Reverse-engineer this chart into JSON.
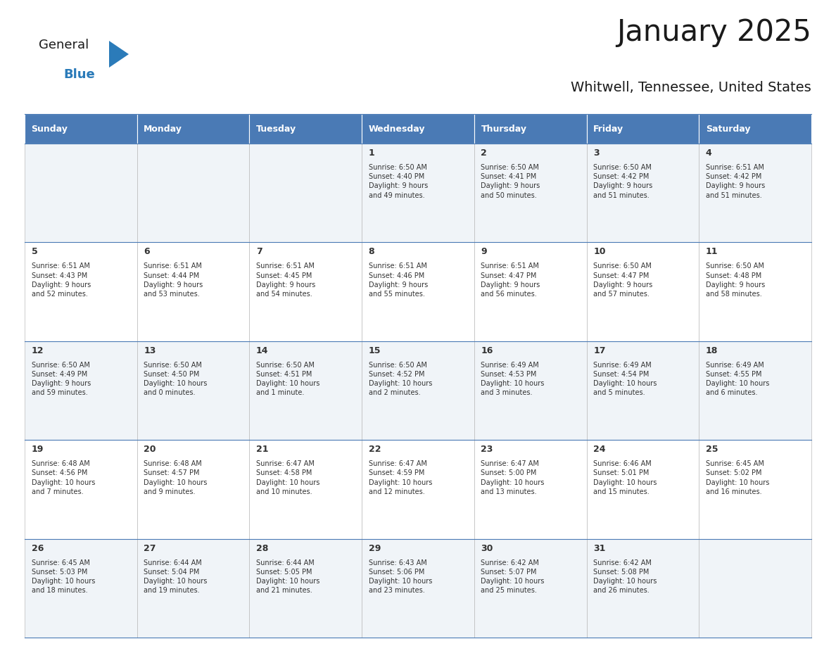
{
  "title": "January 2025",
  "subtitle": "Whitwell, Tennessee, United States",
  "header_color": "#4a7ab5",
  "header_text_color": "#FFFFFF",
  "cell_bg_even": "#F0F4F8",
  "cell_bg_odd": "#FFFFFF",
  "day_headers": [
    "Sunday",
    "Monday",
    "Tuesday",
    "Wednesday",
    "Thursday",
    "Friday",
    "Saturday"
  ],
  "days": [
    {
      "day": 1,
      "col": 3,
      "row": 0,
      "sunrise": "6:50 AM",
      "sunset": "4:40 PM",
      "daylight": "9 hours\nand 49 minutes."
    },
    {
      "day": 2,
      "col": 4,
      "row": 0,
      "sunrise": "6:50 AM",
      "sunset": "4:41 PM",
      "daylight": "9 hours\nand 50 minutes."
    },
    {
      "day": 3,
      "col": 5,
      "row": 0,
      "sunrise": "6:50 AM",
      "sunset": "4:42 PM",
      "daylight": "9 hours\nand 51 minutes."
    },
    {
      "day": 4,
      "col": 6,
      "row": 0,
      "sunrise": "6:51 AM",
      "sunset": "4:42 PM",
      "daylight": "9 hours\nand 51 minutes."
    },
    {
      "day": 5,
      "col": 0,
      "row": 1,
      "sunrise": "6:51 AM",
      "sunset": "4:43 PM",
      "daylight": "9 hours\nand 52 minutes."
    },
    {
      "day": 6,
      "col": 1,
      "row": 1,
      "sunrise": "6:51 AM",
      "sunset": "4:44 PM",
      "daylight": "9 hours\nand 53 minutes."
    },
    {
      "day": 7,
      "col": 2,
      "row": 1,
      "sunrise": "6:51 AM",
      "sunset": "4:45 PM",
      "daylight": "9 hours\nand 54 minutes."
    },
    {
      "day": 8,
      "col": 3,
      "row": 1,
      "sunrise": "6:51 AM",
      "sunset": "4:46 PM",
      "daylight": "9 hours\nand 55 minutes."
    },
    {
      "day": 9,
      "col": 4,
      "row": 1,
      "sunrise": "6:51 AM",
      "sunset": "4:47 PM",
      "daylight": "9 hours\nand 56 minutes."
    },
    {
      "day": 10,
      "col": 5,
      "row": 1,
      "sunrise": "6:50 AM",
      "sunset": "4:47 PM",
      "daylight": "9 hours\nand 57 minutes."
    },
    {
      "day": 11,
      "col": 6,
      "row": 1,
      "sunrise": "6:50 AM",
      "sunset": "4:48 PM",
      "daylight": "9 hours\nand 58 minutes."
    },
    {
      "day": 12,
      "col": 0,
      "row": 2,
      "sunrise": "6:50 AM",
      "sunset": "4:49 PM",
      "daylight": "9 hours\nand 59 minutes."
    },
    {
      "day": 13,
      "col": 1,
      "row": 2,
      "sunrise": "6:50 AM",
      "sunset": "4:50 PM",
      "daylight": "10 hours\nand 0 minutes."
    },
    {
      "day": 14,
      "col": 2,
      "row": 2,
      "sunrise": "6:50 AM",
      "sunset": "4:51 PM",
      "daylight": "10 hours\nand 1 minute."
    },
    {
      "day": 15,
      "col": 3,
      "row": 2,
      "sunrise": "6:50 AM",
      "sunset": "4:52 PM",
      "daylight": "10 hours\nand 2 minutes."
    },
    {
      "day": 16,
      "col": 4,
      "row": 2,
      "sunrise": "6:49 AM",
      "sunset": "4:53 PM",
      "daylight": "10 hours\nand 3 minutes."
    },
    {
      "day": 17,
      "col": 5,
      "row": 2,
      "sunrise": "6:49 AM",
      "sunset": "4:54 PM",
      "daylight": "10 hours\nand 5 minutes."
    },
    {
      "day": 18,
      "col": 6,
      "row": 2,
      "sunrise": "6:49 AM",
      "sunset": "4:55 PM",
      "daylight": "10 hours\nand 6 minutes."
    },
    {
      "day": 19,
      "col": 0,
      "row": 3,
      "sunrise": "6:48 AM",
      "sunset": "4:56 PM",
      "daylight": "10 hours\nand 7 minutes."
    },
    {
      "day": 20,
      "col": 1,
      "row": 3,
      "sunrise": "6:48 AM",
      "sunset": "4:57 PM",
      "daylight": "10 hours\nand 9 minutes."
    },
    {
      "day": 21,
      "col": 2,
      "row": 3,
      "sunrise": "6:47 AM",
      "sunset": "4:58 PM",
      "daylight": "10 hours\nand 10 minutes."
    },
    {
      "day": 22,
      "col": 3,
      "row": 3,
      "sunrise": "6:47 AM",
      "sunset": "4:59 PM",
      "daylight": "10 hours\nand 12 minutes."
    },
    {
      "day": 23,
      "col": 4,
      "row": 3,
      "sunrise": "6:47 AM",
      "sunset": "5:00 PM",
      "daylight": "10 hours\nand 13 minutes."
    },
    {
      "day": 24,
      "col": 5,
      "row": 3,
      "sunrise": "6:46 AM",
      "sunset": "5:01 PM",
      "daylight": "10 hours\nand 15 minutes."
    },
    {
      "day": 25,
      "col": 6,
      "row": 3,
      "sunrise": "6:45 AM",
      "sunset": "5:02 PM",
      "daylight": "10 hours\nand 16 minutes."
    },
    {
      "day": 26,
      "col": 0,
      "row": 4,
      "sunrise": "6:45 AM",
      "sunset": "5:03 PM",
      "daylight": "10 hours\nand 18 minutes."
    },
    {
      "day": 27,
      "col": 1,
      "row": 4,
      "sunrise": "6:44 AM",
      "sunset": "5:04 PM",
      "daylight": "10 hours\nand 19 minutes."
    },
    {
      "day": 28,
      "col": 2,
      "row": 4,
      "sunrise": "6:44 AM",
      "sunset": "5:05 PM",
      "daylight": "10 hours\nand 21 minutes."
    },
    {
      "day": 29,
      "col": 3,
      "row": 4,
      "sunrise": "6:43 AM",
      "sunset": "5:06 PM",
      "daylight": "10 hours\nand 23 minutes."
    },
    {
      "day": 30,
      "col": 4,
      "row": 4,
      "sunrise": "6:42 AM",
      "sunset": "5:07 PM",
      "daylight": "10 hours\nand 25 minutes."
    },
    {
      "day": 31,
      "col": 5,
      "row": 4,
      "sunrise": "6:42 AM",
      "sunset": "5:08 PM",
      "daylight": "10 hours\nand 26 minutes."
    }
  ],
  "num_rows": 5,
  "num_cols": 7,
  "logo_color_general": "#1a1a1a",
  "logo_color_blue": "#2B7BB9",
  "logo_triangle_color": "#2B7BB9"
}
